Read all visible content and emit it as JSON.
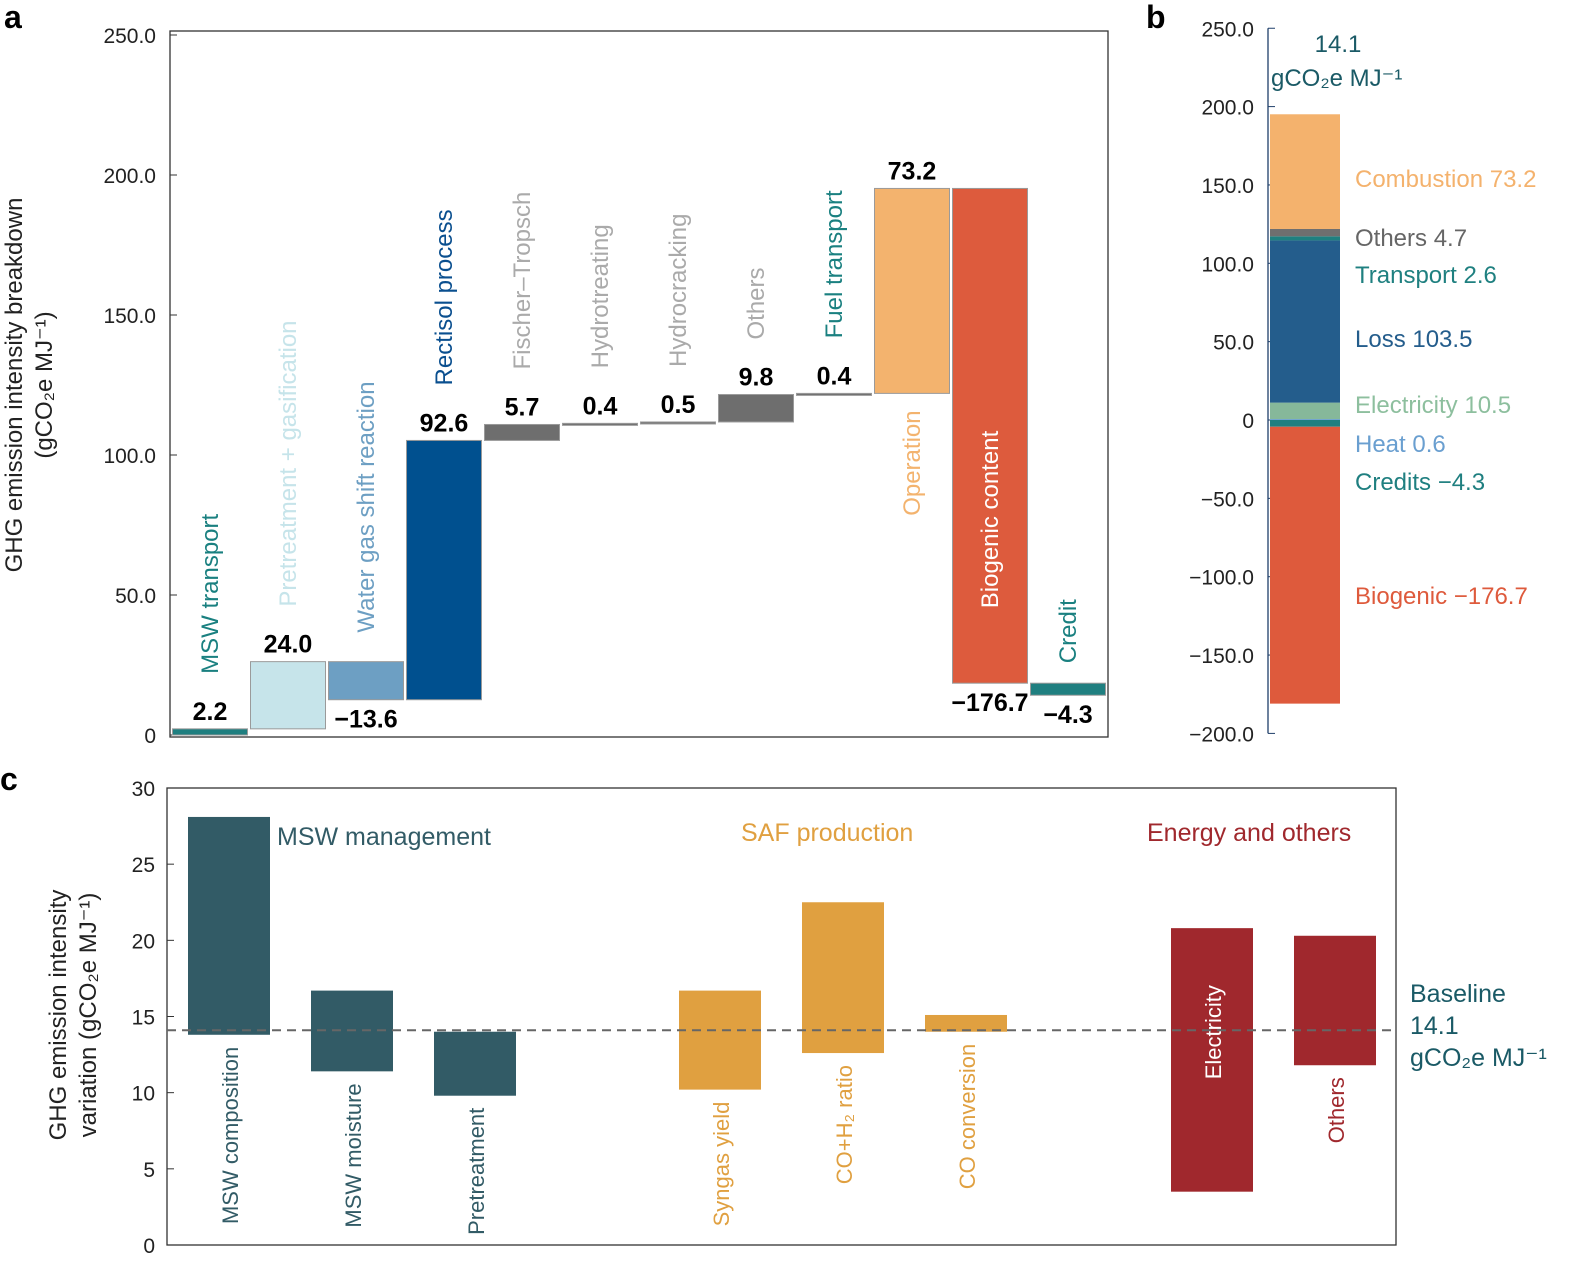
{
  "chart_data": [
    {
      "panel": "a",
      "type": "waterfall",
      "ylabel_lines": [
        "GHG emission intensity breakdown",
        "(gCO₂e MJ⁻¹)"
      ],
      "ylim": [
        0,
        250
      ],
      "yticks": [
        "0",
        "50.0",
        "100.0",
        "150.0",
        "200.0",
        "250.0"
      ],
      "ytick_values": [
        0,
        50,
        100,
        150,
        200,
        250
      ],
      "categories": [
        "MSW transport",
        "Pretreatment + gasification",
        "Water gas shift reaction",
        "Rectisol process",
        "Fischer–Tropsch",
        "Hydrotreating",
        "Hydrocracking",
        "Others",
        "Fuel transport",
        "Operation",
        "Biogenic content",
        "Credit"
      ],
      "values": [
        2.2,
        24.0,
        -13.6,
        92.6,
        5.7,
        0.4,
        0.5,
        9.8,
        0.4,
        73.2,
        -176.7,
        -4.3
      ],
      "value_labels": [
        "2.2",
        "24.0",
        "−13.6",
        "92.6",
        "5.7",
        "0.4",
        "0.5",
        "9.8",
        "0.4",
        "73.2",
        "−176.7",
        "−4.3"
      ],
      "bar_colors": [
        "#1f7f80",
        "#c6e4ea",
        "#6d9fc3",
        "#00508f",
        "#6e6e6e",
        "#6e6e6e",
        "#6e6e6e",
        "#6e6e6e",
        "#6e6e6e",
        "#f3b36e",
        "#dd5b3d",
        "#1f7f80"
      ],
      "label_colors": [
        "#1a8080",
        "#c6e4ea",
        "#6d9fc3",
        "#0a4f8f",
        "#aaaaaa",
        "#aaaaaa",
        "#aaaaaa",
        "#aaaaaa",
        "#1a8080",
        "#f3b36e",
        "#ffffff",
        "#1a8080"
      ]
    },
    {
      "panel": "b",
      "type": "stacked-bar",
      "ylim": [
        -200,
        250
      ],
      "yticks": [
        "−200.0",
        "−150.0",
        "−100.0",
        "−50.0",
        "0",
        "50.0",
        "100.0",
        "150.0",
        "200.0",
        "250.0"
      ],
      "ytick_values": [
        -200,
        -150,
        -100,
        -50,
        0,
        50,
        100,
        150,
        200,
        250
      ],
      "total_label": [
        "14.1",
        "gCO₂e MJ⁻¹"
      ],
      "segments": [
        {
          "name": "Heat",
          "value": 0.6,
          "label": "Heat 0.6",
          "color": "#6a9fd0"
        },
        {
          "name": "Electricity",
          "value": 10.5,
          "label": "Electricity 10.5",
          "color": "#86b89a"
        },
        {
          "name": "Loss",
          "value": 103.5,
          "label": "Loss 103.5",
          "color": "#245d8c"
        },
        {
          "name": "Transport",
          "value": 2.6,
          "label": "Transport 2.6",
          "color": "#1f8080"
        },
        {
          "name": "Others",
          "value": 4.7,
          "label": "Others 4.7",
          "color": "#6f6f6f"
        },
        {
          "name": "Combustion",
          "value": 73.2,
          "label": "Combustion 73.2",
          "color": "#f4b26d"
        },
        {
          "name": "Credits",
          "value": -4.3,
          "label": "Credits −4.3",
          "color": "#1f7f80"
        },
        {
          "name": "Biogenic",
          "value": -176.7,
          "label": "Biogenic −176.7",
          "color": "#de5a3c"
        }
      ]
    },
    {
      "panel": "c",
      "type": "range-bar",
      "ylabel_lines": [
        "GHG emission intensity",
        "variation (gCO₂e MJ⁻¹)"
      ],
      "ylim": [
        0,
        30
      ],
      "yticks": [
        "0",
        "5",
        "10",
        "15",
        "20",
        "25",
        "30"
      ],
      "ytick_values": [
        0,
        5,
        10,
        15,
        20,
        25,
        30
      ],
      "baseline": 14.1,
      "baseline_label": [
        "Baseline",
        "14.1",
        "gCO₂e MJ⁻¹"
      ],
      "groups": [
        {
          "name": "MSW management",
          "color": "#325b66"
        },
        {
          "name": "SAF production",
          "color": "#e0a040"
        },
        {
          "name": "Energy and others",
          "color": "#a0282d"
        }
      ],
      "bars": [
        {
          "label": "MSW composition",
          "group": 0,
          "low": 13.8,
          "high": 28.1
        },
        {
          "label": "MSW moisture",
          "group": 0,
          "low": 11.4,
          "high": 16.7
        },
        {
          "label": "Pretreatment",
          "group": 0,
          "low": 9.8,
          "high": 14.0
        },
        {
          "label": "Syngas yield",
          "group": 1,
          "low": 10.2,
          "high": 16.7
        },
        {
          "label": "CO+H₂ ratio",
          "group": 1,
          "low": 12.6,
          "high": 22.5
        },
        {
          "label": "CO conversion",
          "group": 1,
          "low": 14.0,
          "high": 15.1
        },
        {
          "label": "Electricity",
          "group": 2,
          "low": 3.5,
          "high": 20.8
        },
        {
          "label": "Others",
          "group": 2,
          "low": 11.8,
          "high": 20.3
        }
      ]
    }
  ],
  "panel_letters": [
    "a",
    "b",
    "c"
  ]
}
